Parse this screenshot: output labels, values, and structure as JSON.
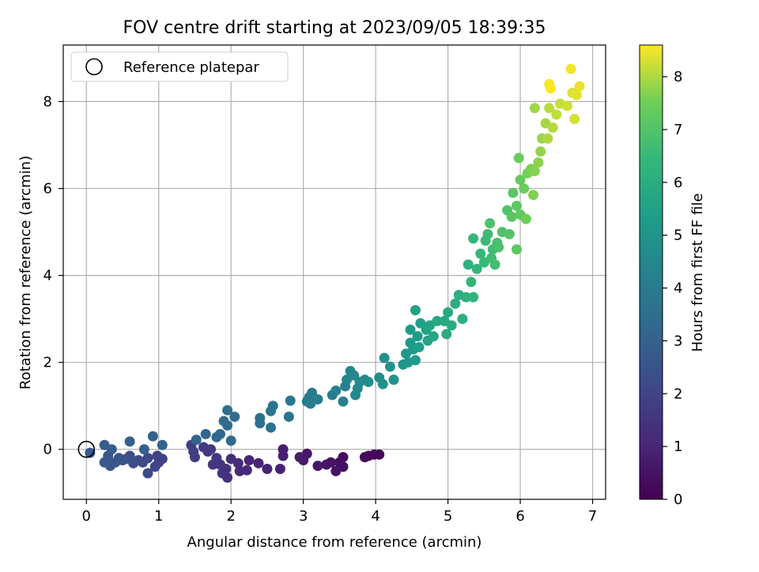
{
  "chart_data": {
    "type": "scatter",
    "title": "FOV centre drift starting at 2023/09/05 18:39:35",
    "xlabel": "Angular distance from reference (arcmin)",
    "ylabel": "Rotation from reference (arcmin)",
    "xlim": [
      -0.32,
      7.18
    ],
    "ylim": [
      -1.15,
      9.3
    ],
    "xticks": [
      0,
      1,
      2,
      3,
      4,
      5,
      6,
      7
    ],
    "yticks": [
      0,
      2,
      4,
      6,
      8
    ],
    "grid": true,
    "legend": {
      "placement": "top-left",
      "entries": [
        "Reference platepar"
      ]
    },
    "reference_point": {
      "x": 0,
      "y": 0
    },
    "colorbar": {
      "label": "Hours from first FF file",
      "range": [
        0,
        8.6
      ],
      "ticks": [
        0,
        1,
        2,
        3,
        4,
        5,
        6,
        7,
        8
      ],
      "colormap": "viridis"
    },
    "points": [
      [
        4.05,
        -0.12,
        0.1
      ],
      [
        3.98,
        -0.12,
        0.15
      ],
      [
        3.9,
        -0.15,
        0.2
      ],
      [
        3.85,
        -0.18,
        0.25
      ],
      [
        3.55,
        -0.18,
        0.3
      ],
      [
        3.55,
        -0.4,
        0.35
      ],
      [
        3.5,
        -0.3,
        0.4
      ],
      [
        3.45,
        -0.5,
        0.45
      ],
      [
        3.38,
        -0.3,
        0.5
      ],
      [
        3.32,
        -0.35,
        0.55
      ],
      [
        3.2,
        -0.38,
        0.6
      ],
      [
        3.05,
        -0.1,
        0.65
      ],
      [
        3.0,
        -0.25,
        0.7
      ],
      [
        2.95,
        -0.18,
        0.75
      ],
      [
        2.72,
        0.0,
        0.8
      ],
      [
        2.72,
        -0.15,
        0.85
      ],
      [
        2.68,
        -0.45,
        0.9
      ],
      [
        2.5,
        -0.45,
        0.95
      ],
      [
        2.38,
        -0.32,
        1.0
      ],
      [
        2.25,
        -0.25,
        1.05
      ],
      [
        2.22,
        -0.48,
        1.1
      ],
      [
        2.12,
        -0.5,
        1.15
      ],
      [
        2.1,
        -0.32,
        1.2
      ],
      [
        2.0,
        -0.22,
        1.25
      ],
      [
        1.95,
        -0.65,
        1.3
      ],
      [
        1.93,
        -0.45,
        1.35
      ],
      [
        1.88,
        -0.55,
        1.4
      ],
      [
        1.85,
        -0.35,
        1.45
      ],
      [
        1.8,
        -0.2,
        1.5
      ],
      [
        1.75,
        -0.35,
        1.55
      ],
      [
        1.72,
        0.0,
        1.6
      ],
      [
        1.68,
        -0.05,
        1.65
      ],
      [
        1.62,
        0.05,
        1.7
      ],
      [
        1.5,
        -0.18,
        1.75
      ],
      [
        1.48,
        -0.05,
        1.8
      ],
      [
        1.45,
        0.1,
        1.85
      ],
      [
        1.05,
        -0.22,
        1.9
      ],
      [
        1.0,
        -0.3,
        1.95
      ],
      [
        0.98,
        -0.15,
        2.0
      ],
      [
        0.95,
        -0.4,
        2.05
      ],
      [
        0.85,
        -0.2,
        2.1
      ],
      [
        0.85,
        -0.55,
        2.15
      ],
      [
        0.78,
        -0.3,
        2.2
      ],
      [
        0.72,
        -0.25,
        2.25
      ],
      [
        0.65,
        -0.32,
        2.3
      ],
      [
        0.6,
        -0.15,
        2.35
      ],
      [
        0.55,
        -0.22,
        2.4
      ],
      [
        0.5,
        -0.25,
        2.45
      ],
      [
        0.45,
        -0.2,
        2.5
      ],
      [
        0.4,
        -0.3,
        2.55
      ],
      [
        0.33,
        -0.38,
        2.6
      ],
      [
        0.3,
        -0.15,
        2.65
      ],
      [
        0.25,
        -0.3,
        2.7
      ],
      [
        0.05,
        -0.08,
        2.75
      ],
      [
        0.25,
        0.1,
        2.8
      ],
      [
        0.35,
        0.0,
        2.85
      ],
      [
        0.6,
        0.18,
        2.9
      ],
      [
        0.8,
        0.0,
        2.95
      ],
      [
        0.92,
        0.3,
        3.0
      ],
      [
        1.05,
        0.1,
        3.05
      ],
      [
        1.52,
        0.22,
        3.1
      ],
      [
        1.65,
        0.35,
        3.15
      ],
      [
        1.8,
        0.28,
        3.2
      ],
      [
        1.85,
        0.35,
        3.25
      ],
      [
        1.95,
        0.55,
        3.3
      ],
      [
        2.0,
        0.2,
        3.35
      ],
      [
        1.9,
        0.65,
        3.4
      ],
      [
        2.05,
        0.75,
        3.45
      ],
      [
        1.95,
        0.9,
        3.5
      ],
      [
        2.4,
        0.6,
        3.55
      ],
      [
        2.4,
        0.72,
        3.6
      ],
      [
        2.55,
        0.5,
        3.65
      ],
      [
        2.55,
        0.88,
        3.7
      ],
      [
        2.58,
        1.0,
        3.75
      ],
      [
        2.8,
        0.75,
        3.8
      ],
      [
        2.82,
        1.12,
        3.85
      ],
      [
        3.05,
        1.1,
        3.9
      ],
      [
        3.08,
        1.2,
        3.95
      ],
      [
        3.1,
        1.05,
        4.0
      ],
      [
        3.12,
        1.3,
        4.05
      ],
      [
        3.2,
        1.15,
        4.1
      ],
      [
        3.4,
        1.25,
        4.15
      ],
      [
        3.45,
        1.35,
        4.2
      ],
      [
        3.55,
        1.1,
        4.25
      ],
      [
        3.58,
        1.45,
        4.3
      ],
      [
        3.6,
        1.6,
        4.35
      ],
      [
        3.65,
        1.8,
        4.4
      ],
      [
        3.7,
        1.7,
        4.45
      ],
      [
        3.72,
        1.25,
        4.5
      ],
      [
        3.75,
        1.4,
        4.55
      ],
      [
        3.78,
        1.55,
        4.6
      ],
      [
        3.85,
        1.6,
        4.65
      ],
      [
        3.9,
        1.55,
        4.7
      ],
      [
        4.05,
        1.65,
        4.75
      ],
      [
        4.1,
        1.5,
        4.8
      ],
      [
        4.12,
        2.1,
        4.85
      ],
      [
        4.2,
        1.9,
        4.9
      ],
      [
        4.25,
        1.6,
        4.95
      ],
      [
        4.38,
        1.95,
        5.0
      ],
      [
        4.42,
        2.2,
        5.05
      ],
      [
        4.45,
        2.0,
        5.1
      ],
      [
        4.48,
        2.45,
        5.15
      ],
      [
        4.52,
        2.3,
        5.2
      ],
      [
        4.55,
        2.05,
        5.25
      ],
      [
        4.58,
        2.6,
        5.3
      ],
      [
        4.48,
        2.75,
        5.35
      ],
      [
        4.6,
        2.35,
        5.4
      ],
      [
        4.62,
        2.9,
        5.45
      ],
      [
        4.55,
        3.2,
        5.5
      ],
      [
        4.7,
        2.75,
        5.55
      ],
      [
        4.72,
        2.5,
        5.6
      ],
      [
        4.75,
        2.85,
        5.65
      ],
      [
        4.8,
        2.6,
        5.7
      ],
      [
        4.85,
        2.95,
        5.75
      ],
      [
        4.95,
        2.95,
        5.8
      ],
      [
        4.98,
        2.65,
        5.85
      ],
      [
        5.0,
        3.15,
        5.9
      ],
      [
        5.05,
        2.85,
        5.95
      ],
      [
        5.1,
        3.35,
        6.0
      ],
      [
        5.15,
        3.55,
        6.05
      ],
      [
        5.2,
        3.0,
        6.1
      ],
      [
        5.25,
        3.5,
        6.15
      ],
      [
        5.28,
        4.25,
        6.2
      ],
      [
        5.35,
        3.5,
        6.25
      ],
      [
        5.32,
        3.85,
        6.3
      ],
      [
        5.4,
        4.15,
        6.35
      ],
      [
        5.35,
        4.85,
        6.4
      ],
      [
        5.45,
        4.5,
        6.45
      ],
      [
        5.5,
        4.3,
        6.5
      ],
      [
        5.52,
        4.8,
        6.55
      ],
      [
        5.55,
        4.95,
        6.6
      ],
      [
        5.6,
        4.4,
        6.65
      ],
      [
        5.62,
        4.6,
        6.7
      ],
      [
        5.65,
        4.25,
        6.75
      ],
      [
        5.68,
        4.75,
        6.8
      ],
      [
        5.7,
        4.65,
        6.85
      ],
      [
        5.58,
        5.2,
        6.9
      ],
      [
        5.75,
        5.0,
        6.95
      ],
      [
        5.82,
        5.5,
        7.0
      ],
      [
        5.85,
        4.95,
        7.05
      ],
      [
        5.88,
        5.35,
        7.1
      ],
      [
        5.9,
        5.9,
        7.15
      ],
      [
        5.95,
        4.6,
        7.2
      ],
      [
        5.95,
        5.6,
        7.25
      ],
      [
        6.0,
        5.4,
        7.3
      ],
      [
        6.0,
        6.2,
        7.35
      ],
      [
        5.98,
        6.7,
        7.4
      ],
      [
        6.05,
        6.0,
        7.45
      ],
      [
        6.08,
        5.3,
        7.5
      ],
      [
        6.1,
        6.35,
        7.55
      ],
      [
        6.15,
        6.45,
        7.6
      ],
      [
        6.18,
        5.85,
        7.65
      ],
      [
        6.2,
        6.4,
        7.7
      ],
      [
        6.25,
        6.6,
        7.75
      ],
      [
        6.28,
        6.85,
        7.8
      ],
      [
        6.3,
        7.15,
        7.85
      ],
      [
        6.2,
        7.85,
        7.9
      ],
      [
        6.35,
        7.5,
        7.95
      ],
      [
        6.38,
        7.15,
        8.0
      ],
      [
        6.45,
        7.4,
        8.05
      ],
      [
        6.4,
        7.85,
        8.1
      ],
      [
        6.5,
        7.7,
        8.15
      ],
      [
        6.55,
        7.95,
        8.2
      ],
      [
        6.65,
        7.9,
        8.25
      ],
      [
        6.75,
        7.6,
        8.3
      ],
      [
        6.72,
        8.2,
        8.35
      ],
      [
        6.78,
        8.15,
        8.4
      ],
      [
        6.82,
        8.35,
        8.45
      ],
      [
        6.7,
        8.75,
        8.5
      ],
      [
        6.4,
        8.4,
        8.55
      ],
      [
        6.42,
        8.3,
        8.6
      ]
    ]
  }
}
